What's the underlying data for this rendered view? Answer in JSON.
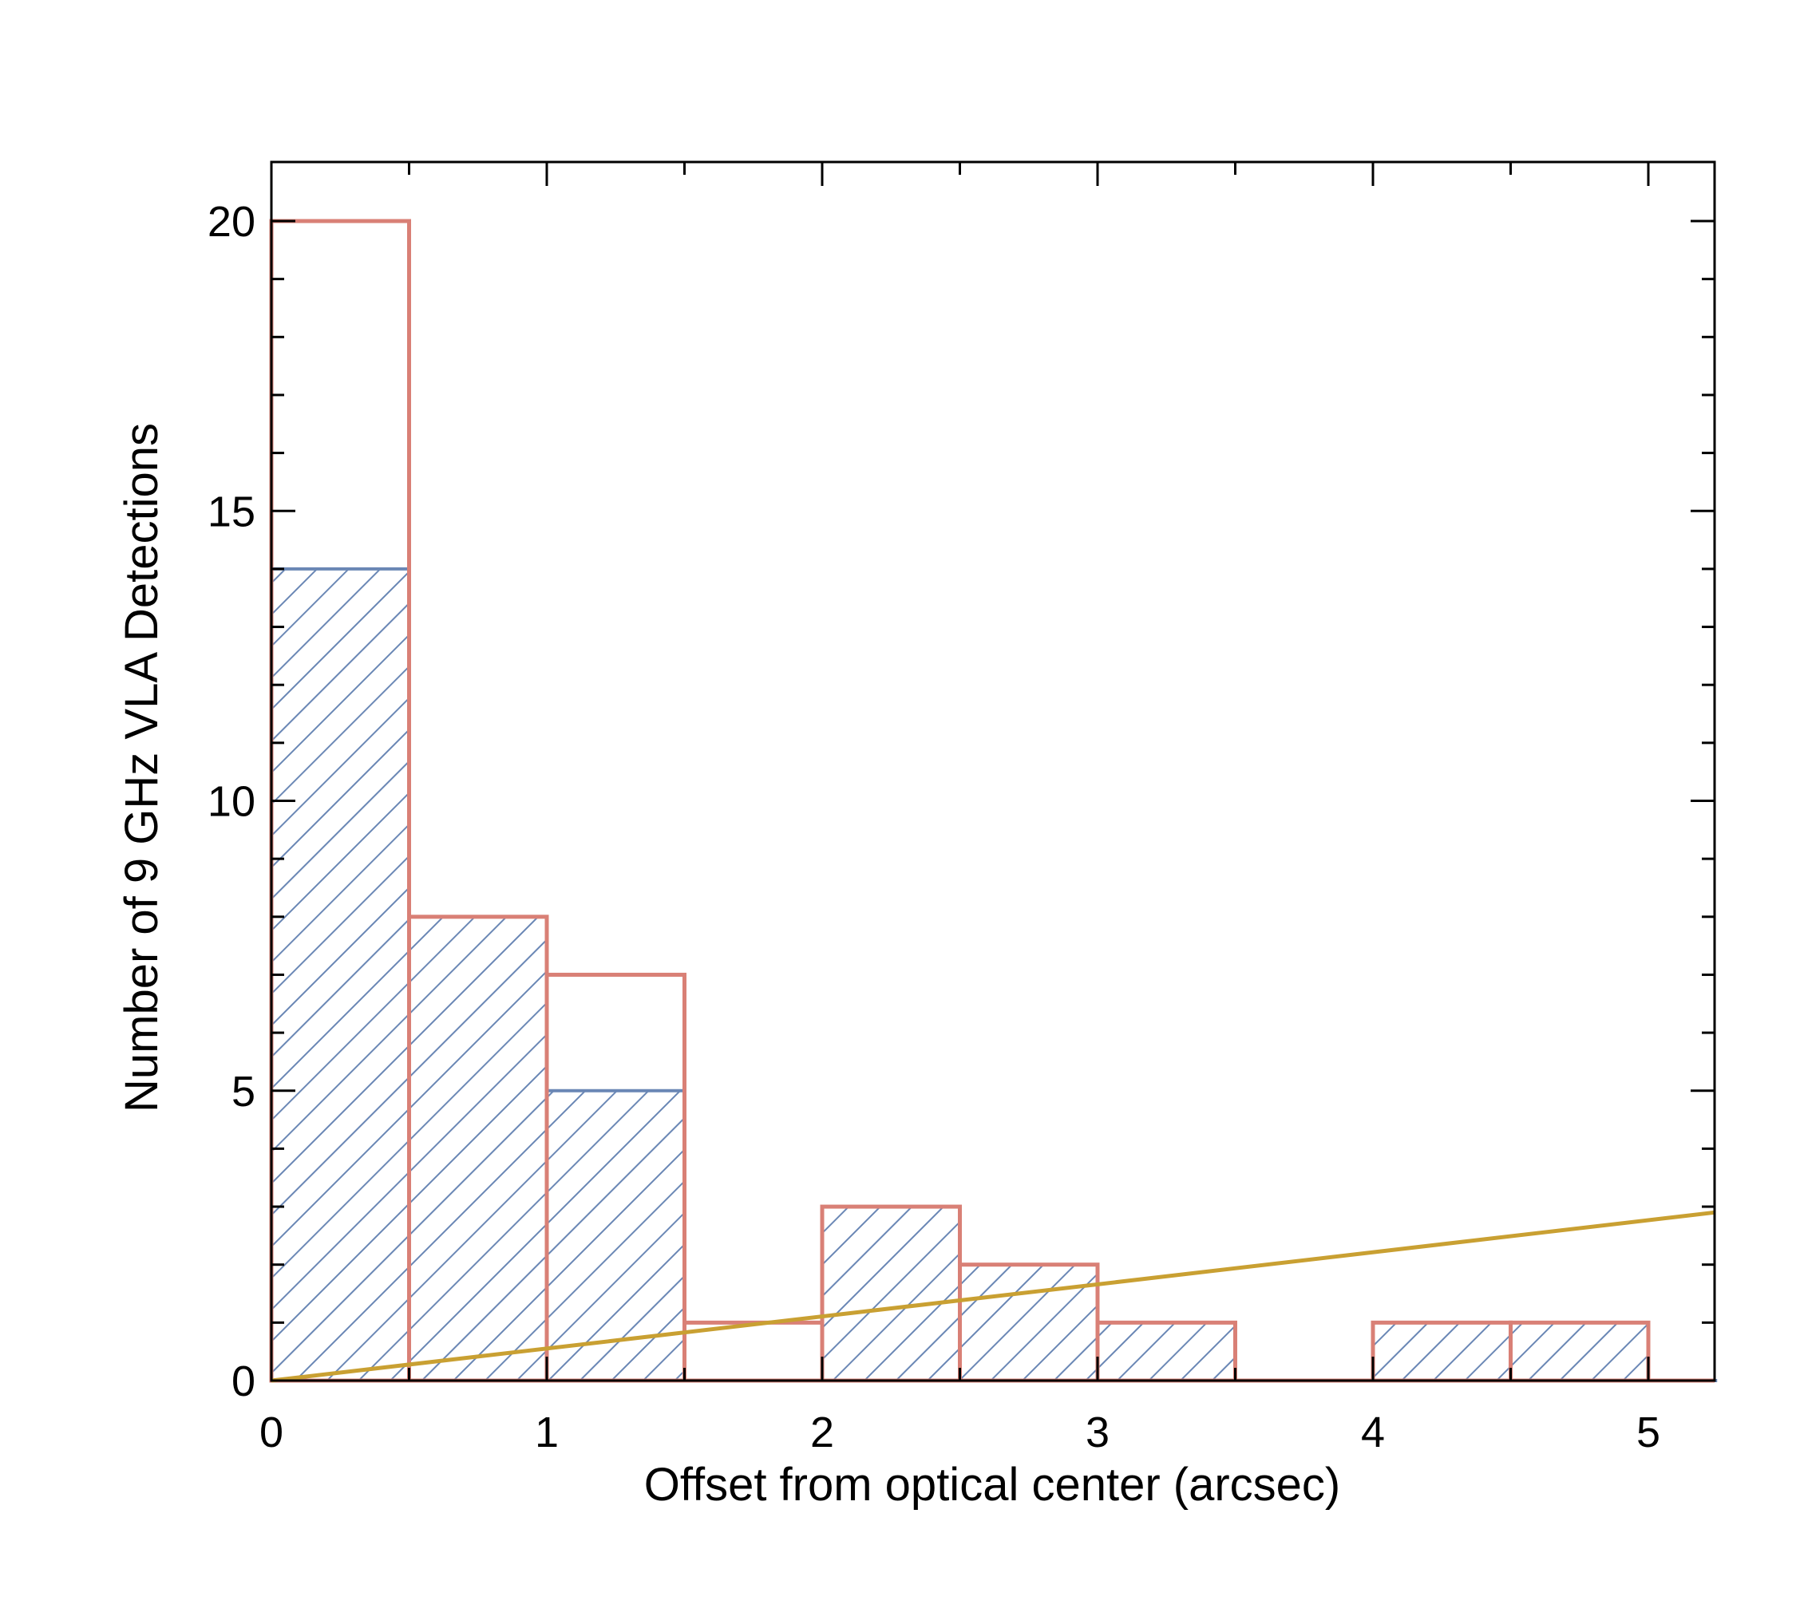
{
  "chart_data": {
    "type": "bar",
    "xlabel": "Offset from optical center (arcsec)",
    "ylabel": "Number of 9 GHz VLA Detections",
    "xlim": [
      0,
      5.25
    ],
    "ylim": [
      0,
      21
    ],
    "x_ticks": [
      "0",
      "1",
      "2",
      "3",
      "4",
      "5"
    ],
    "y_ticks": [
      "0",
      "5",
      "10",
      "15",
      "20"
    ],
    "bin_edges": [
      0,
      0.5,
      1.0,
      1.5,
      2.0,
      2.5,
      3.0,
      3.5,
      4.0,
      4.5,
      5.0,
      5.25
    ],
    "series": [
      {
        "style": "outline",
        "color": "#d98076",
        "values": [
          20,
          8,
          7,
          1,
          3,
          2,
          1,
          0,
          1,
          1,
          0
        ]
      },
      {
        "style": "hatched",
        "color": "#6a87b5",
        "values": [
          14,
          8,
          5,
          0,
          3,
          2,
          1,
          0,
          1,
          1,
          0
        ]
      }
    ],
    "line": {
      "color": "#c9a032",
      "x": [
        0,
        5.25
      ],
      "y": [
        0,
        2.9
      ]
    },
    "grid": false,
    "legend": "none"
  }
}
